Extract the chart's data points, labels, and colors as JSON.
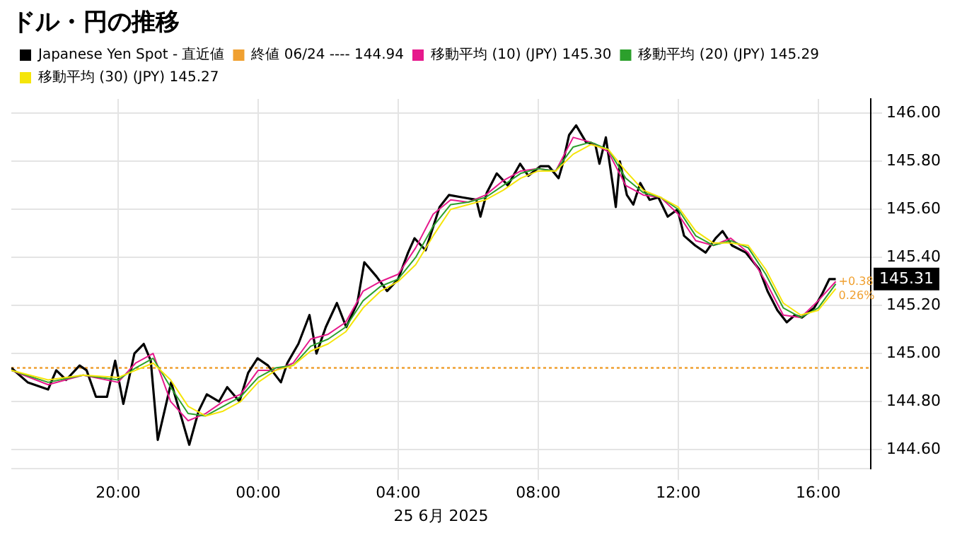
{
  "chart_data": {
    "type": "line",
    "title": "ドル・円の推移",
    "xlabel": "25 6月 2025",
    "xlim": [
      "2025-06-24T16:57",
      "2025-06-25T17:30"
    ],
    "xticks": [
      {
        "value": "2025-06-24T20:00",
        "label": "20:00"
      },
      {
        "value": "2025-06-25T00:00",
        "label": "00:00"
      },
      {
        "value": "2025-06-25T04:00",
        "label": "04:00"
      },
      {
        "value": "2025-06-25T08:00",
        "label": "08:00"
      },
      {
        "value": "2025-06-25T12:00",
        "label": "12:00"
      },
      {
        "value": "2025-06-25T16:00",
        "label": "16:00"
      }
    ],
    "ylim": [
      144.52,
      146.06
    ],
    "yticks": [
      {
        "value": 144.6,
        "label": "144.60"
      },
      {
        "value": 144.8,
        "label": "144.80"
      },
      {
        "value": 145.0,
        "label": "145.00"
      },
      {
        "value": 145.2,
        "label": "145.20"
      },
      {
        "value": 145.4,
        "label": "145.40"
      },
      {
        "value": 145.6,
        "label": "145.60"
      },
      {
        "value": 145.8,
        "label": "145.80"
      },
      {
        "value": 146.0,
        "label": "146.00"
      }
    ],
    "grid": true,
    "legend": "top left",
    "marker": "none",
    "line_style": "solid",
    "series": [
      {
        "name": "Japanese Yen Spot - 直近値",
        "color": "#000000",
        "x": [
          "2025-06-24T16:57",
          "2025-06-24T17:25",
          "2025-06-24T18:00",
          "2025-06-24T18:14",
          "2025-06-24T18:31",
          "2025-06-24T18:54",
          "2025-06-24T19:06",
          "2025-06-24T19:22",
          "2025-06-24T19:41",
          "2025-06-24T19:55",
          "2025-06-24T20:09",
          "2025-06-24T20:28",
          "2025-06-24T20:44",
          "2025-06-24T20:56",
          "2025-06-24T21:08",
          "2025-06-24T21:31",
          "2025-06-24T22:02",
          "2025-06-24T22:18",
          "2025-06-24T22:32",
          "2025-06-24T22:53",
          "2025-06-24T23:07",
          "2025-06-24T23:28",
          "2025-06-24T23:43",
          "2025-06-24T23:59",
          "2025-06-25T00:17",
          "2025-06-25T00:39",
          "2025-06-25T00:50",
          "2025-06-25T01:09",
          "2025-06-25T01:28",
          "2025-06-25T01:40",
          "2025-06-25T01:56",
          "2025-06-25T02:15",
          "2025-06-25T02:31",
          "2025-06-25T02:50",
          "2025-06-25T03:02",
          "2025-06-25T03:23",
          "2025-06-25T03:41",
          "2025-06-25T04:00",
          "2025-06-25T04:17",
          "2025-06-25T04:28",
          "2025-06-25T04:47",
          "2025-06-25T05:11",
          "2025-06-25T05:27",
          "2025-06-25T05:50",
          "2025-06-25T06:14",
          "2025-06-25T06:21",
          "2025-06-25T06:32",
          "2025-06-25T06:49",
          "2025-06-25T07:08",
          "2025-06-25T07:29",
          "2025-06-25T07:43",
          "2025-06-25T08:04",
          "2025-06-25T08:18",
          "2025-06-25T08:35",
          "2025-06-25T08:41",
          "2025-06-25T08:53",
          "2025-06-25T09:05",
          "2025-06-25T09:22",
          "2025-06-25T09:38",
          "2025-06-25T09:45",
          "2025-06-25T09:56",
          "2025-06-25T10:08",
          "2025-06-25T10:13",
          "2025-06-25T10:20",
          "2025-06-25T10:32",
          "2025-06-25T10:43",
          "2025-06-25T10:55",
          "2025-06-25T11:11",
          "2025-06-25T11:26",
          "2025-06-25T11:42",
          "2025-06-25T11:59",
          "2025-06-25T12:10",
          "2025-06-25T12:29",
          "2025-06-25T12:47",
          "2025-06-25T13:04",
          "2025-06-25T13:16",
          "2025-06-25T13:32",
          "2025-06-25T13:56",
          "2025-06-25T14:19",
          "2025-06-25T14:33",
          "2025-06-25T14:50",
          "2025-06-25T15:06",
          "2025-06-25T15:20",
          "2025-06-25T15:32",
          "2025-06-25T15:53",
          "2025-06-25T16:07",
          "2025-06-25T16:19",
          "2025-06-25T16:30"
        ],
        "values": [
          144.94,
          144.88,
          144.85,
          144.93,
          144.89,
          144.95,
          144.93,
          144.82,
          144.82,
          144.97,
          144.79,
          145.0,
          145.04,
          144.97,
          144.64,
          144.88,
          144.62,
          144.76,
          144.83,
          144.8,
          144.86,
          144.8,
          144.92,
          144.98,
          144.95,
          144.88,
          144.96,
          145.04,
          145.16,
          145.0,
          145.11,
          145.21,
          145.11,
          145.21,
          145.38,
          145.32,
          145.26,
          145.31,
          145.42,
          145.48,
          145.43,
          145.61,
          145.66,
          145.65,
          145.64,
          145.57,
          145.67,
          145.75,
          145.7,
          145.79,
          145.74,
          145.78,
          145.78,
          145.73,
          145.78,
          145.91,
          145.95,
          145.88,
          145.87,
          145.79,
          145.9,
          145.7,
          145.61,
          145.8,
          145.66,
          145.62,
          145.71,
          145.64,
          145.65,
          145.57,
          145.6,
          145.49,
          145.45,
          145.42,
          145.48,
          145.51,
          145.45,
          145.42,
          145.35,
          145.26,
          145.18,
          145.13,
          145.16,
          145.15,
          145.19,
          145.25,
          145.31,
          145.31
        ]
      },
      {
        "name": "移動平均 (10) (JPY) 145.30",
        "color": "#e6198c",
        "x": [
          "2025-06-24T16:57",
          "2025-06-24T18:00",
          "2025-06-24T19:00",
          "2025-06-24T20:00",
          "2025-06-24T20:30",
          "2025-06-24T21:00",
          "2025-06-24T21:30",
          "2025-06-24T22:00",
          "2025-06-24T22:30",
          "2025-06-24T23:00",
          "2025-06-24T23:30",
          "2025-06-25T00:00",
          "2025-06-25T00:30",
          "2025-06-25T01:00",
          "2025-06-25T01:30",
          "2025-06-25T02:00",
          "2025-06-25T02:30",
          "2025-06-25T03:00",
          "2025-06-25T03:30",
          "2025-06-25T04:00",
          "2025-06-25T04:30",
          "2025-06-25T05:00",
          "2025-06-25T05:30",
          "2025-06-25T06:00",
          "2025-06-25T06:30",
          "2025-06-25T07:00",
          "2025-06-25T07:30",
          "2025-06-25T08:00",
          "2025-06-25T08:30",
          "2025-06-25T09:00",
          "2025-06-25T09:30",
          "2025-06-25T10:00",
          "2025-06-25T10:30",
          "2025-06-25T11:00",
          "2025-06-25T11:30",
          "2025-06-25T12:00",
          "2025-06-25T12:30",
          "2025-06-25T13:00",
          "2025-06-25T13:30",
          "2025-06-25T14:00",
          "2025-06-25T14:30",
          "2025-06-25T15:00",
          "2025-06-25T15:30",
          "2025-06-25T16:00",
          "2025-06-25T16:30"
        ],
        "values": [
          144.93,
          144.87,
          144.91,
          144.88,
          144.96,
          145.0,
          144.8,
          144.72,
          144.75,
          144.8,
          144.83,
          144.93,
          144.93,
          144.96,
          145.06,
          145.08,
          145.13,
          145.26,
          145.3,
          145.33,
          145.44,
          145.58,
          145.64,
          145.63,
          145.66,
          145.72,
          145.76,
          145.77,
          145.76,
          145.9,
          145.88,
          145.84,
          145.7,
          145.66,
          145.65,
          145.58,
          145.47,
          145.45,
          145.48,
          145.42,
          145.3,
          145.16,
          145.15,
          145.22,
          145.3
        ]
      },
      {
        "name": "移動平均 (20) (JPY) 145.29",
        "color": "#2ca02c",
        "x": [
          "2025-06-24T16:57",
          "2025-06-24T18:00",
          "2025-06-24T19:00",
          "2025-06-24T20:00",
          "2025-06-24T20:30",
          "2025-06-24T21:00",
          "2025-06-24T21:30",
          "2025-06-24T22:00",
          "2025-06-24T22:30",
          "2025-06-24T23:00",
          "2025-06-24T23:30",
          "2025-06-25T00:00",
          "2025-06-25T00:30",
          "2025-06-25T01:00",
          "2025-06-25T01:30",
          "2025-06-25T02:00",
          "2025-06-25T02:30",
          "2025-06-25T03:00",
          "2025-06-25T03:30",
          "2025-06-25T04:00",
          "2025-06-25T04:30",
          "2025-06-25T05:00",
          "2025-06-25T05:30",
          "2025-06-25T06:00",
          "2025-06-25T06:30",
          "2025-06-25T07:00",
          "2025-06-25T07:30",
          "2025-06-25T08:00",
          "2025-06-25T08:30",
          "2025-06-25T09:00",
          "2025-06-25T09:30",
          "2025-06-25T10:00",
          "2025-06-25T10:30",
          "2025-06-25T11:00",
          "2025-06-25T11:30",
          "2025-06-25T12:00",
          "2025-06-25T12:30",
          "2025-06-25T13:00",
          "2025-06-25T13:30",
          "2025-06-25T14:00",
          "2025-06-25T14:30",
          "2025-06-25T15:00",
          "2025-06-25T15:30",
          "2025-06-25T16:00",
          "2025-06-25T16:30"
        ],
        "values": [
          144.93,
          144.88,
          144.91,
          144.89,
          144.94,
          144.98,
          144.86,
          144.75,
          144.74,
          144.78,
          144.82,
          144.9,
          144.94,
          144.95,
          145.03,
          145.06,
          145.11,
          145.22,
          145.28,
          145.31,
          145.4,
          145.53,
          145.62,
          145.63,
          145.65,
          145.7,
          145.75,
          145.77,
          145.76,
          145.86,
          145.88,
          145.85,
          145.73,
          145.67,
          145.65,
          145.6,
          145.49,
          145.45,
          145.47,
          145.44,
          145.33,
          145.19,
          145.15,
          145.19,
          145.29
        ]
      },
      {
        "name": "移動平均 (30) (JPY) 145.27",
        "color": "#f5e50a",
        "x": [
          "2025-06-24T16:57",
          "2025-06-24T18:00",
          "2025-06-24T19:00",
          "2025-06-24T20:00",
          "2025-06-24T20:30",
          "2025-06-24T21:00",
          "2025-06-24T21:30",
          "2025-06-24T22:00",
          "2025-06-24T22:30",
          "2025-06-24T23:00",
          "2025-06-24T23:30",
          "2025-06-25T00:00",
          "2025-06-25T00:30",
          "2025-06-25T01:00",
          "2025-06-25T01:30",
          "2025-06-25T02:00",
          "2025-06-25T02:30",
          "2025-06-25T03:00",
          "2025-06-25T03:30",
          "2025-06-25T04:00",
          "2025-06-25T04:30",
          "2025-06-25T05:00",
          "2025-06-25T05:30",
          "2025-06-25T06:00",
          "2025-06-25T06:30",
          "2025-06-25T07:00",
          "2025-06-25T07:30",
          "2025-06-25T08:00",
          "2025-06-25T08:30",
          "2025-06-25T09:00",
          "2025-06-25T09:30",
          "2025-06-25T10:00",
          "2025-06-25T10:30",
          "2025-06-25T11:00",
          "2025-06-25T11:30",
          "2025-06-25T12:00",
          "2025-06-25T12:30",
          "2025-06-25T13:00",
          "2025-06-25T13:30",
          "2025-06-25T14:00",
          "2025-06-25T14:30",
          "2025-06-25T15:00",
          "2025-06-25T15:30",
          "2025-06-25T16:00",
          "2025-06-25T16:30"
        ],
        "values": [
          144.93,
          144.89,
          144.91,
          144.9,
          144.93,
          144.96,
          144.89,
          144.78,
          144.74,
          144.76,
          144.8,
          144.88,
          144.93,
          144.95,
          145.01,
          145.04,
          145.09,
          145.19,
          145.26,
          145.3,
          145.37,
          145.49,
          145.6,
          145.62,
          145.64,
          145.68,
          145.73,
          145.76,
          145.76,
          145.83,
          145.87,
          145.85,
          145.76,
          145.68,
          145.65,
          145.61,
          145.51,
          145.46,
          145.46,
          145.45,
          145.35,
          145.21,
          145.16,
          145.18,
          145.27
        ]
      }
    ],
    "ref_lines": [
      {
        "axis": "y",
        "value": 144.94,
        "label": "終値 06/24 ---- 144.94",
        "color": "#f0a030",
        "line_style": "dotted"
      }
    ],
    "annotations": [
      {
        "text": "+0.38",
        "x": "2025-06-25T16:30",
        "y": 145.31
      },
      {
        "text": "0.26%",
        "x": "2025-06-25T16:30",
        "y": 145.31
      },
      "145.31"
    ]
  }
}
